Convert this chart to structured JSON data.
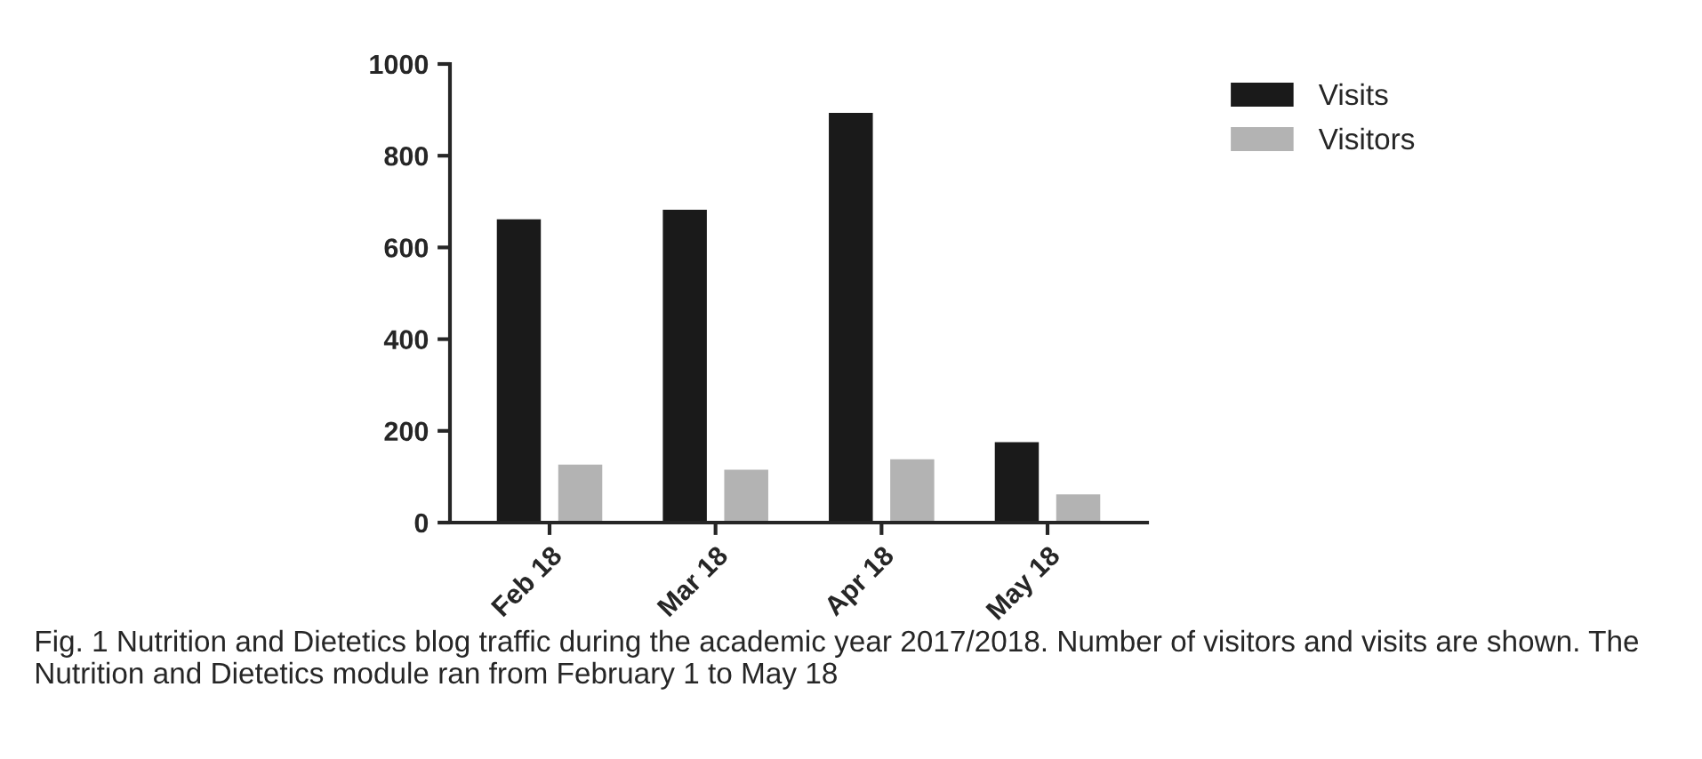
{
  "chart_data": {
    "type": "bar",
    "categories": [
      "Feb 18",
      "Mar 18",
      "Apr 18",
      "May 18"
    ],
    "series": [
      {
        "name": "Visits",
        "color": "#1a1a1a",
        "values": [
          664,
          685,
          896,
          178
        ]
      },
      {
        "name": "Visitors",
        "color": "#b3b3b3",
        "values": [
          129,
          118,
          141,
          64
        ]
      }
    ],
    "ylim": [
      0,
      1000
    ],
    "yticks": [
      0,
      200,
      400,
      600,
      800,
      1000
    ],
    "grid": false,
    "legend": "top right",
    "annotations": [
      "Fig. 1 Nutrition and Dietetics blog traffic during the academic year 2017/2018. Number of visitors and visits are shown. The Nutrition and Dietetics module ran from February 1 to May 18"
    ]
  }
}
